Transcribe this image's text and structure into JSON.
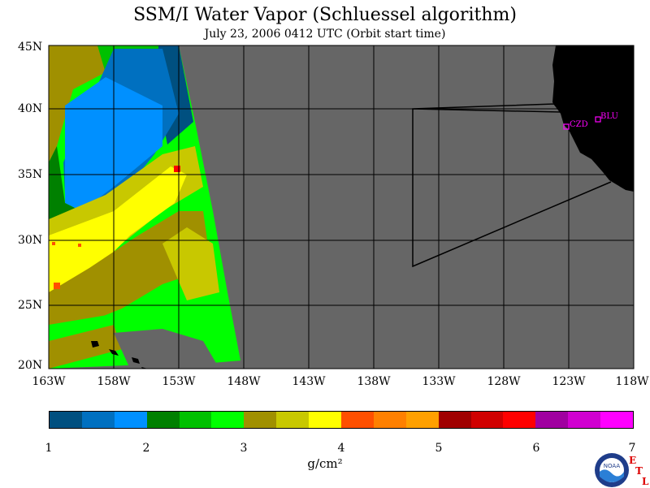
{
  "title": "SSM/I Water Vapor (Schluessel algorithm)",
  "subtitle": "July 23, 2006  0412 UTC  (Orbit start time)",
  "map": {
    "lat_labels": [
      "45N",
      "40N",
      "35N",
      "30N",
      "25N",
      "20N"
    ],
    "lon_labels": [
      "163W",
      "158W",
      "153W",
      "148W",
      "143W",
      "138W",
      "133W",
      "128W",
      "123W",
      "118W"
    ],
    "stations": [
      {
        "name": "CZD"
      },
      {
        "name": "BLU"
      }
    ],
    "colors": {
      "no_data": "#666666",
      "land": "#000000",
      "grid": "#000000",
      "station": "#ff00ff"
    }
  },
  "colorbar": {
    "colors": [
      "#005080",
      "#0070c0",
      "#0090ff",
      "#008000",
      "#00c000",
      "#00ff00",
      "#a09000",
      "#c8c800",
      "#ffff00",
      "#ff5000",
      "#ff8000",
      "#ffa000",
      "#a00000",
      "#d00000",
      "#ff0000",
      "#a000a0",
      "#d000d0",
      "#ff00ff"
    ],
    "ticks": [
      "1",
      "2",
      "3",
      "4",
      "5",
      "6",
      "7"
    ],
    "unit": "g/cm²"
  },
  "logo": {
    "text": "NOAA",
    "etl_letters": [
      "E",
      "T",
      "L"
    ]
  }
}
